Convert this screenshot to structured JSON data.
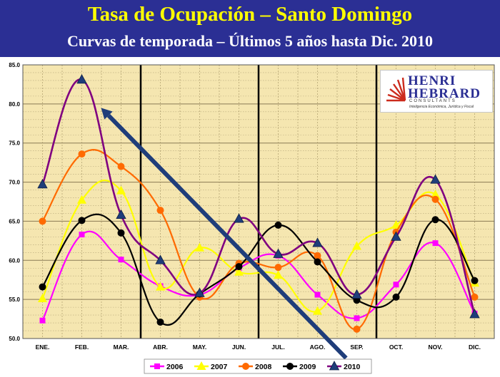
{
  "header": {
    "title": "Tasa de Ocupación – Santo Domingo",
    "subtitle": "Curvas de temporada – Últimos 5 años hasta Dic. 2010"
  },
  "logo": {
    "line1": "HENRI",
    "line2": "HEBRARD",
    "line3": "CONSULTANTS",
    "line4": "Inteligencia Económica, Jurídica y Fiscal",
    "icon": "sunburst-logo-icon"
  },
  "chart_data": {
    "type": "line",
    "categories": [
      "ENE.",
      "FEB.",
      "MAR.",
      "ABR.",
      "MAY.",
      "JUN.",
      "JUL.",
      "AGO.",
      "SEP.",
      "OCT.",
      "NOV.",
      "DIC."
    ],
    "ylim": [
      50,
      85
    ],
    "yticks": [
      "50.0",
      "55.0",
      "60.0",
      "65.0",
      "70.0",
      "75.0",
      "80.0",
      "85.0"
    ],
    "grid": true,
    "background": "#f5e6b0",
    "quarter_separators_after": [
      "MAR.",
      "JUN.",
      "SEP."
    ],
    "legend_position": "bottom",
    "series": [
      {
        "name": "2006",
        "color": "#ff00ff",
        "marker": "square",
        "values": [
          52.3,
          63.3,
          60.1,
          56.7,
          55.6,
          59.0,
          60.6,
          55.6,
          52.6,
          56.9,
          62.2,
          53.2
        ]
      },
      {
        "name": "2007",
        "color": "#ffff00",
        "marker": "triangle",
        "values": [
          55.1,
          67.7,
          68.9,
          56.6,
          61.6,
          58.5,
          58.1,
          53.5,
          61.8,
          64.5,
          68.4,
          57.1
        ]
      },
      {
        "name": "2008",
        "color": "#ff6a00",
        "marker": "circle",
        "values": [
          65.0,
          73.6,
          72.0,
          66.4,
          55.3,
          59.6,
          59.1,
          60.6,
          51.2,
          63.6,
          67.8,
          55.3
        ]
      },
      {
        "name": "2009",
        "color": "#000000",
        "marker": "circle",
        "values": [
          56.6,
          65.1,
          63.5,
          52.1,
          55.7,
          59.2,
          64.5,
          59.8,
          54.9,
          55.3,
          65.2,
          57.4
        ]
      },
      {
        "name": "2010",
        "color": "#800080",
        "marker": "triangle",
        "values": [
          69.7,
          83.1,
          65.8,
          60.0,
          55.8,
          65.3,
          60.8,
          62.2,
          55.6,
          63.0,
          70.3,
          53.1
        ]
      }
    ],
    "annotation": {
      "type": "arrow",
      "color": "#1f3d7a",
      "from": [
        "SEP.",
        47.5
      ],
      "to": [
        "FEB.",
        79.5
      ]
    }
  }
}
